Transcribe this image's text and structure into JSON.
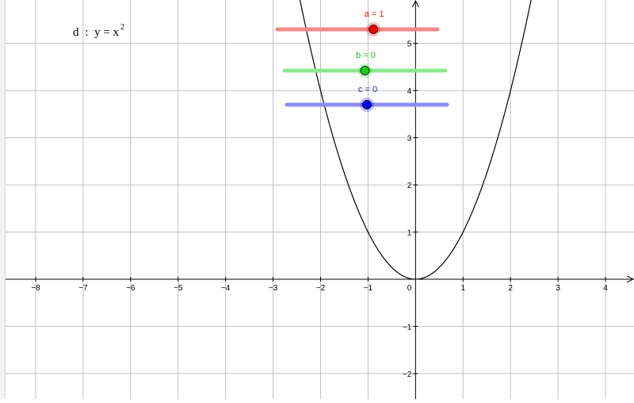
{
  "graph": {
    "x_range": [
      -8.75,
      4.6
    ],
    "y_range": [
      -2.54,
      5.92
    ],
    "x_ticks": [
      -8,
      -7,
      -6,
      -5,
      -4,
      -3,
      -2,
      -1,
      1,
      2,
      3,
      4
    ],
    "x_tick_labels": [
      "−8",
      "−7",
      "−6",
      "−5",
      "−4",
      "−3",
      "−2",
      "−1",
      "1",
      "2",
      "3",
      "4"
    ],
    "y_ticks": [
      -2,
      -1,
      1,
      2,
      3,
      4,
      5
    ],
    "y_tick_labels": [
      "−2",
      "−1",
      "1",
      "2",
      "3",
      "4",
      "5"
    ],
    "origin_label": "0",
    "grid_color": "#c0c0c0",
    "curve_color": "#000000"
  },
  "function": {
    "name": "d",
    "separator": ":",
    "expression": "y = x",
    "exponent": "2"
  },
  "sliders": [
    {
      "name": "a",
      "label": "a = 1",
      "value": 1,
      "min": -5,
      "max": 5,
      "track_color": "#f08a8a",
      "knob_color": "#ee0000",
      "text_color": "#e01010"
    },
    {
      "name": "b",
      "label": "b = 0",
      "value": 0,
      "min": -5,
      "max": 5,
      "track_color": "#8fe88f",
      "knob_color": "#20cc20",
      "text_color": "#22bb22"
    },
    {
      "name": "c",
      "label": "c = 0",
      "value": 0,
      "min": -5,
      "max": 5,
      "track_color": "#8c8cf0",
      "knob_color": "#0000ee",
      "text_color": "#1a1acc"
    }
  ]
}
